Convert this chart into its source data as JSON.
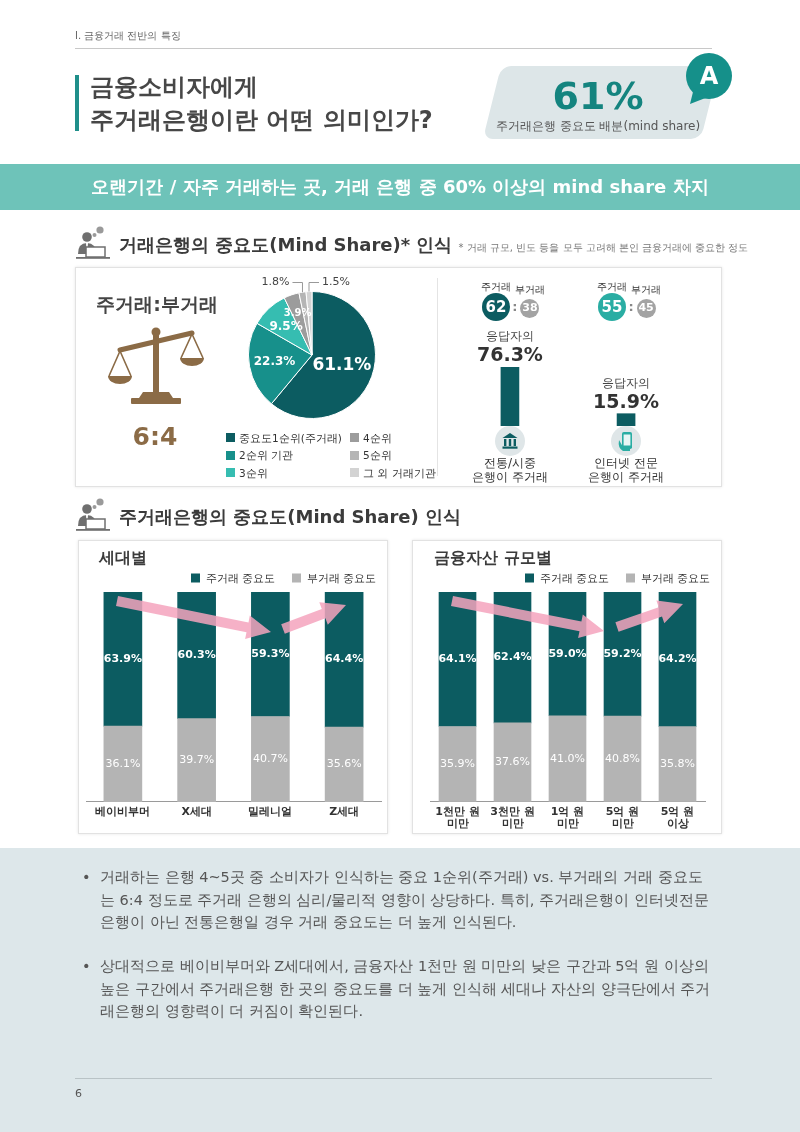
{
  "chart_data": [
    {
      "type": "other",
      "title": "금융소비자에게\n주거래은행이란 어떤 의미인가?",
      "subtitle": "오랜기간 / 자주 거래하는 곳, 거래 은행 중 60% 이상의 mind share 차지",
      "annotations": [
        "I. 금융거래 전반의 특징",
        "61%",
        "주거래은행 중요도 배분(mind share)",
        "A"
      ]
    },
    {
      "type": "pie",
      "title": "거래은행의 중요도(Mind Share)* 인식",
      "subtitle": "* 거래 규모, 빈도 등을 모두 고려해 본인 금융거래에 중요한 정도",
      "categories": [
        "중요도1순위(주거래)",
        "2순위 기관",
        "3순위",
        "4순위",
        "5순위",
        "그 외 거래기관"
      ],
      "values": [
        61.1,
        22.3,
        9.5,
        3.9,
        1.8,
        1.5
      ],
      "colors": [
        "#0c5c61",
        "#17908b",
        "#36bdb1",
        "#9c9c9c",
        "#b5b5b5",
        "#d3d3d3"
      ],
      "value_labels": [
        "61.1%",
        "22.3%",
        "9.5%",
        "3.9%",
        "1.8%",
        "1.5%"
      ],
      "legend": "bottom",
      "annotations": [
        "주거래:부거래",
        "6:4"
      ]
    },
    {
      "type": "bar",
      "categories": [
        "전통/시중\n은행이 주거래",
        "인터넷 전문\n은행이 주거래"
      ],
      "values": [
        76.3,
        15.9
      ],
      "color": "#0c5c61",
      "value_labels": [
        "76.3%",
        "15.9%"
      ],
      "annotations": [
        "주거래",
        "62",
        ":",
        "38",
        "부거래",
        "응답자의",
        "주거래",
        "55",
        ":",
        "45",
        "부거래",
        "응답자의"
      ]
    },
    {
      "type": "other",
      "title": "주거래은행의 중요도(Mind Share) 인식"
    },
    {
      "type": "bar",
      "stacked": true,
      "title": "세대별",
      "categories": [
        "베이비부머",
        "X세대",
        "밀레니얼",
        "Z세대"
      ],
      "series": [
        {
          "name": "부거래 중요도",
          "color": "#b4b4b4",
          "values": [
            36.1,
            39.7,
            40.7,
            35.6
          ],
          "value_labels": [
            "36.1%",
            "39.7%",
            "40.7%",
            "35.6%"
          ]
        },
        {
          "name": "주거래 중요도",
          "color": "#0c5c61",
          "values": [
            63.9,
            60.3,
            59.3,
            64.4
          ],
          "value_labels": [
            "63.9%",
            "60.3%",
            "59.3%",
            "64.4%"
          ]
        }
      ],
      "legend": "top right"
    },
    {
      "type": "bar",
      "stacked": true,
      "title": "금융자산 규모별",
      "categories": [
        "1천만 원\n미만",
        "3천만 원\n미만",
        "1억 원\n미만",
        "5억 원\n미만",
        "5억 원\n이상"
      ],
      "series": [
        {
          "name": "부거래 중요도",
          "color": "#b4b4b4",
          "values": [
            35.9,
            37.6,
            41.0,
            40.8,
            35.8
          ],
          "value_labels": [
            "35.9%",
            "37.6%",
            "41.0%",
            "40.8%",
            "35.8%"
          ]
        },
        {
          "name": "주거래 중요도",
          "color": "#0c5c61",
          "values": [
            64.1,
            62.4,
            59.0,
            59.2,
            64.2
          ],
          "value_labels": [
            "64.1%",
            "62.4%",
            "59.0%",
            "59.2%",
            "64.2%"
          ]
        }
      ],
      "legend": "top right"
    },
    {
      "type": "other",
      "annotations": [
        "•",
        "거래하는 은행 4~5곳 중 소비자가 인식하는 중요 1순위(주거래) vs. 부거래의 거래 중요도는 6:4 정도로 주거래 은행의 심리/물리적 영향이 상당하다. 특히, 주거래은행이 인터넷전문은행이 아닌 전통은행일 경우 거래 중요도는 더 높게 인식된다.",
        "•",
        "상대적으로 베이비부머와 Z세대에서, 금융자산 1천만 원 미만의 낮은 구간과 5억 원 이상의 높은 구간에서 주거래은행 한 곳의 중요도를 더 높게 인식해 세대나 자산의 양극단에서 주거래은행의 영향력이 더 커짐이 확인된다.",
        "6"
      ]
    }
  ]
}
